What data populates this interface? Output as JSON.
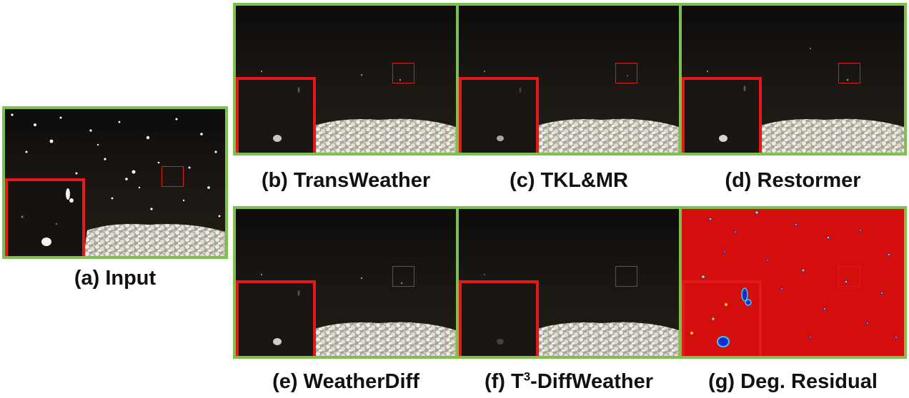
{
  "figure": {
    "captions": {
      "a": "(a) Input",
      "b": "(b) TransWeather",
      "c": "(c) TKL&MR",
      "d": "(d) Restormer",
      "e": "(e) WeatherDiff",
      "f_prefix": "(f) T",
      "f_sup": "3",
      "f_suffix": "-DiffWeather",
      "g": "(g) Deg. Residual"
    },
    "colors": {
      "panel_border": "#7cc04e",
      "inset_border": "#e61919",
      "night_bg": "#17130f",
      "snow_ground": "#d9d6cc",
      "residual_bg": "#d40d0d"
    }
  }
}
